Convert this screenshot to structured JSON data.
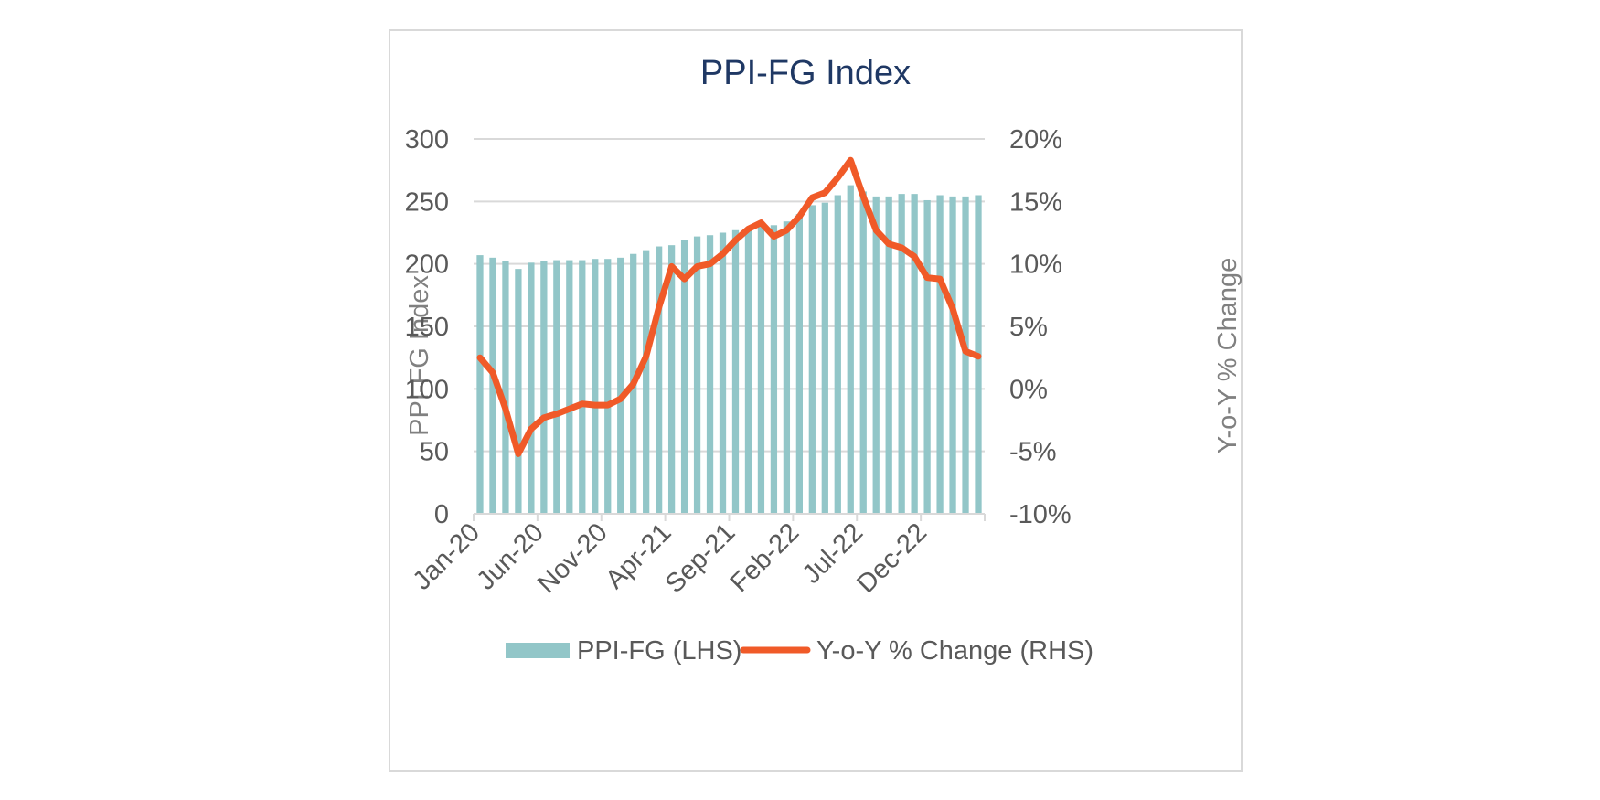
{
  "chart_data": {
    "type": "bar",
    "title": "PPI-FG Index",
    "ylabel": "PPI-FG Index",
    "y2label": "Y-o-Y % Change",
    "ylim": [
      0,
      300
    ],
    "y2lim": [
      -10,
      20
    ],
    "yticks": [
      "0",
      "50",
      "100",
      "150",
      "200",
      "250",
      "300"
    ],
    "y2ticks": [
      "-10%",
      "-5%",
      "0%",
      "5%",
      "10%",
      "15%",
      "20%"
    ],
    "xticks": [
      "Jan-20",
      "Jun-20",
      "Nov-20",
      "Apr-21",
      "Sep-21",
      "Feb-22",
      "Jul-22",
      "Dec-22"
    ],
    "x": [
      "Jan-20",
      "Feb-20",
      "Mar-20",
      "Apr-20",
      "May-20",
      "Jun-20",
      "Jul-20",
      "Aug-20",
      "Sep-20",
      "Oct-20",
      "Nov-20",
      "Dec-20",
      "Jan-21",
      "Feb-21",
      "Mar-21",
      "Apr-21",
      "May-21",
      "Jun-21",
      "Jul-21",
      "Aug-21",
      "Sep-21",
      "Oct-21",
      "Nov-21",
      "Dec-21",
      "Jan-22",
      "Feb-22",
      "Mar-22",
      "Apr-22",
      "May-22",
      "Jun-22",
      "Jul-22",
      "Aug-22",
      "Sep-22",
      "Oct-22",
      "Nov-22",
      "Dec-22",
      "Jan-23",
      "Feb-23",
      "Mar-23",
      "Apr-23"
    ],
    "legend_position": "bottom",
    "grid": true,
    "series": [
      {
        "name": "PPI-FG (LHS)",
        "type": "bar",
        "axis": "left",
        "color": "#92c6c8",
        "values": [
          207,
          205,
          202,
          196,
          201,
          202,
          203,
          203,
          203,
          204,
          204,
          205,
          208,
          211,
          214,
          215,
          219,
          222,
          223,
          225,
          227,
          229,
          230,
          231,
          234,
          240,
          247,
          249,
          255,
          263,
          258,
          254,
          254,
          256,
          256,
          251,
          255,
          254,
          254,
          255
        ]
      },
      {
        "name": "Y-o-Y % Change (RHS)",
        "type": "line",
        "axis": "right",
        "color": "#f05a28",
        "values": [
          2.5,
          1.3,
          -1.6,
          -5.2,
          -3.2,
          -2.3,
          -2.0,
          -1.6,
          -1.2,
          -1.3,
          -1.3,
          -0.8,
          0.4,
          2.6,
          6.5,
          9.8,
          8.8,
          9.8,
          10.0,
          10.8,
          11.9,
          12.8,
          13.3,
          12.2,
          12.7,
          13.8,
          15.3,
          15.7,
          16.9,
          18.3,
          15.4,
          12.7,
          11.6,
          11.3,
          10.6,
          8.9,
          8.8,
          6.4,
          3.0,
          2.6
        ]
      }
    ]
  }
}
